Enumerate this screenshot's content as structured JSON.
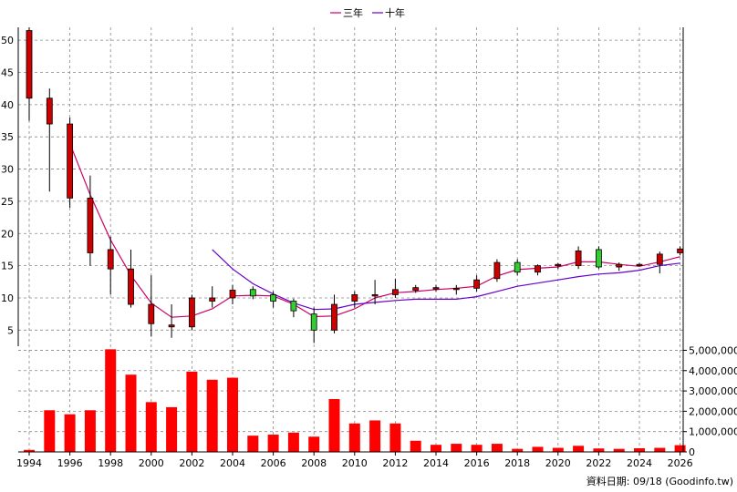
{
  "chart_data": {
    "type": "candlestick+line+bar",
    "legend": [
      {
        "label": "三年",
        "color": "#cc0066"
      },
      {
        "label": "十年",
        "color": "#6600cc"
      }
    ],
    "source_note": "資料日期: 09/18  (Goodinfo.tw)",
    "x_ticks": [
      "1994",
      "1996",
      "1998",
      "2000",
      "2002",
      "2004",
      "2006",
      "2008",
      "2010",
      "2012",
      "2014",
      "2016",
      "2018",
      "2020",
      "2022",
      "2024",
      "2026"
    ],
    "price_axis": {
      "min": 2.5,
      "max": 52,
      "ticks": [
        "5",
        "10",
        "15",
        "20",
        "25",
        "30",
        "35",
        "40",
        "45",
        "50"
      ]
    },
    "volume_axis": {
      "min": 0,
      "max": 5200000,
      "ticks": [
        "0",
        "1,000,000",
        "2,000,000",
        "3,000,000",
        "4,000,000",
        "5,000,000"
      ]
    },
    "candles": [
      {
        "year": 1994,
        "open": 41,
        "high": 52,
        "low": 37.5,
        "close": 51.5
      },
      {
        "year": 1995,
        "open": 37,
        "high": 42.5,
        "low": 26.5,
        "close": 41
      },
      {
        "year": 1996,
        "open": 25.5,
        "high": 38,
        "low": 24,
        "close": 37
      },
      {
        "year": 1997,
        "open": 17,
        "high": 29,
        "low": 15,
        "close": 25.5
      },
      {
        "year": 1998,
        "open": 14.5,
        "high": 19.5,
        "low": 10.5,
        "close": 17.5
      },
      {
        "year": 1999,
        "open": 9,
        "high": 17.5,
        "low": 8.5,
        "close": 14.5
      },
      {
        "year": 2000,
        "open": 6,
        "high": 13.5,
        "low": 4,
        "close": 9
      },
      {
        "year": 2001,
        "open": 5.5,
        "high": 9,
        "low": 3.8,
        "close": 5.8
      },
      {
        "year": 2002,
        "open": 5.5,
        "high": 10.5,
        "low": 5,
        "close": 10
      },
      {
        "year": 2003,
        "open": 9.5,
        "high": 11.8,
        "low": 8.5,
        "close": 10
      },
      {
        "year": 2004,
        "open": 10,
        "high": 12,
        "low": 9,
        "close": 11.2
      },
      {
        "year": 2005,
        "open": 11.3,
        "high": 11.8,
        "low": 9.8,
        "close": 10.3
      },
      {
        "year": 2006,
        "open": 10.5,
        "high": 11,
        "low": 8.5,
        "close": 9.5
      },
      {
        "year": 2007,
        "open": 9.5,
        "high": 9.9,
        "low": 7,
        "close": 8
      },
      {
        "year": 2008,
        "open": 7.5,
        "high": 8.5,
        "low": 3,
        "close": 5
      },
      {
        "year": 2009,
        "open": 5,
        "high": 10.5,
        "low": 4.5,
        "close": 9
      },
      {
        "year": 2010,
        "open": 9.5,
        "high": 11,
        "low": 8.5,
        "close": 10.5
      },
      {
        "year": 2011,
        "open": 10.3,
        "high": 12.8,
        "low": 9,
        "close": 10.5
      },
      {
        "year": 2012,
        "open": 10.5,
        "high": 13,
        "low": 10,
        "close": 11.3
      },
      {
        "year": 2013,
        "open": 11.2,
        "high": 12,
        "low": 10.8,
        "close": 11.6
      },
      {
        "year": 2014,
        "open": 11.4,
        "high": 12,
        "low": 11,
        "close": 11.6
      },
      {
        "year": 2015,
        "open": 11.5,
        "high": 12,
        "low": 10.5,
        "close": 11.5
      },
      {
        "year": 2016,
        "open": 11.5,
        "high": 13.5,
        "low": 11,
        "close": 12.8
      },
      {
        "year": 2017,
        "open": 13,
        "high": 16,
        "low": 12.5,
        "close": 15.5
      },
      {
        "year": 2018,
        "open": 15.5,
        "high": 16,
        "low": 13.5,
        "close": 14
      },
      {
        "year": 2019,
        "open": 14,
        "high": 15.2,
        "low": 13.5,
        "close": 15
      },
      {
        "year": 2020,
        "open": 15,
        "high": 15.4,
        "low": 14.5,
        "close": 15.2
      },
      {
        "year": 2021,
        "open": 15,
        "high": 18,
        "low": 14.5,
        "close": 17.3
      },
      {
        "year": 2022,
        "open": 17.5,
        "high": 18,
        "low": 14.5,
        "close": 14.8
      },
      {
        "year": 2023,
        "open": 14.8,
        "high": 15.5,
        "low": 14.2,
        "close": 15.2
      },
      {
        "year": 2024,
        "open": 15.1,
        "high": 15.4,
        "low": 14.9,
        "close": 15.2
      },
      {
        "year": 2025,
        "open": 15.2,
        "high": 17.2,
        "low": 13.8,
        "close": 16.8
      },
      {
        "year": 2026,
        "open": 17,
        "high": 18,
        "low": 16.6,
        "close": 17.6
      }
    ],
    "series": [
      {
        "name": "三年",
        "color": "#cc0066",
        "points": [
          [
            1996,
            34
          ],
          [
            1997,
            26
          ],
          [
            1998,
            19
          ],
          [
            1999,
            13.5
          ],
          [
            2000,
            9.2
          ],
          [
            2001,
            7
          ],
          [
            2002,
            7.2
          ],
          [
            2003,
            8.3
          ],
          [
            2004,
            10.3
          ],
          [
            2005,
            10.4
          ],
          [
            2006,
            10.3
          ],
          [
            2007,
            9
          ],
          [
            2008,
            7.1
          ],
          [
            2009,
            7.2
          ],
          [
            2010,
            8.3
          ],
          [
            2011,
            10
          ],
          [
            2012,
            10.8
          ],
          [
            2013,
            11
          ],
          [
            2014,
            11.3
          ],
          [
            2015,
            11.5
          ],
          [
            2016,
            11.8
          ],
          [
            2017,
            13.4
          ],
          [
            2018,
            14.4
          ],
          [
            2019,
            14.6
          ],
          [
            2020,
            14.8
          ],
          [
            2021,
            15.6
          ],
          [
            2022,
            15.6
          ],
          [
            2023,
            15.2
          ],
          [
            2024,
            14.9
          ],
          [
            2025,
            15.6
          ],
          [
            2026,
            16.4
          ]
        ]
      },
      {
        "name": "十年",
        "color": "#6600cc",
        "points": [
          [
            2003,
            17.5
          ],
          [
            2004,
            14.5
          ],
          [
            2005,
            12.2
          ],
          [
            2006,
            10.6
          ],
          [
            2007,
            9.2
          ],
          [
            2008,
            8.2
          ],
          [
            2009,
            8.3
          ],
          [
            2010,
            9
          ],
          [
            2011,
            9.3
          ],
          [
            2012,
            9.6
          ],
          [
            2013,
            9.8
          ],
          [
            2014,
            9.8
          ],
          [
            2015,
            9.8
          ],
          [
            2016,
            10.2
          ],
          [
            2017,
            11
          ],
          [
            2018,
            11.8
          ],
          [
            2019,
            12.3
          ],
          [
            2020,
            12.8
          ],
          [
            2021,
            13.3
          ],
          [
            2022,
            13.7
          ],
          [
            2023,
            13.9
          ],
          [
            2024,
            14.3
          ],
          [
            2025,
            15
          ],
          [
            2026,
            15.4
          ]
        ]
      }
    ],
    "volume": [
      {
        "year": 1994,
        "value": 100000
      },
      {
        "year": 1995,
        "value": 2050000
      },
      {
        "year": 1996,
        "value": 1850000
      },
      {
        "year": 1997,
        "value": 2050000
      },
      {
        "year": 1998,
        "value": 5050000
      },
      {
        "year": 1999,
        "value": 3800000
      },
      {
        "year": 2000,
        "value": 2450000
      },
      {
        "year": 2001,
        "value": 2200000
      },
      {
        "year": 2002,
        "value": 3950000
      },
      {
        "year": 2003,
        "value": 3550000
      },
      {
        "year": 2004,
        "value": 3650000
      },
      {
        "year": 2005,
        "value": 800000
      },
      {
        "year": 2006,
        "value": 850000
      },
      {
        "year": 2007,
        "value": 950000
      },
      {
        "year": 2008,
        "value": 750000
      },
      {
        "year": 2009,
        "value": 2600000
      },
      {
        "year": 2010,
        "value": 1400000
      },
      {
        "year": 2011,
        "value": 1550000
      },
      {
        "year": 2012,
        "value": 1400000
      },
      {
        "year": 2013,
        "value": 550000
      },
      {
        "year": 2014,
        "value": 350000
      },
      {
        "year": 2015,
        "value": 400000
      },
      {
        "year": 2016,
        "value": 350000
      },
      {
        "year": 2017,
        "value": 400000
      },
      {
        "year": 2018,
        "value": 150000
      },
      {
        "year": 2019,
        "value": 250000
      },
      {
        "year": 2020,
        "value": 200000
      },
      {
        "year": 2021,
        "value": 300000
      },
      {
        "year": 2022,
        "value": 170000
      },
      {
        "year": 2023,
        "value": 150000
      },
      {
        "year": 2024,
        "value": 180000
      },
      {
        "year": 2025,
        "value": 200000
      },
      {
        "year": 2026,
        "value": 330000
      }
    ],
    "colors": {
      "up": "#cc0000",
      "down": "#33cc33",
      "volume": "#ff0000",
      "grid": "#888888"
    }
  }
}
